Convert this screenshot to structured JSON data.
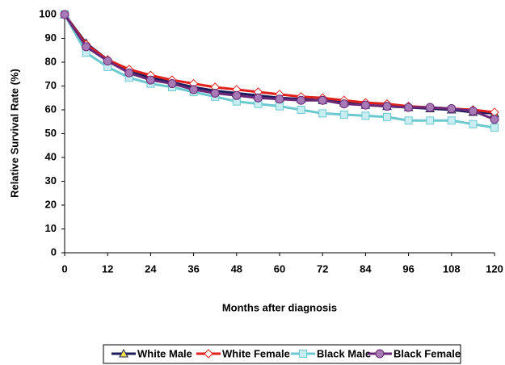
{
  "chart_data": {
    "type": "line",
    "x_label": "Months after diagnosis",
    "y_label": "Relative Survival Rate (%)",
    "x": [
      0,
      6,
      12,
      18,
      24,
      30,
      36,
      42,
      48,
      54,
      60,
      66,
      72,
      78,
      84,
      90,
      96,
      102,
      108,
      114,
      120
    ],
    "series": [
      {
        "name": "White Male",
        "color": "#1c1c5c",
        "marker": "triangle",
        "marker_fill": "#f2e14c",
        "values": [
          100,
          88,
          81,
          76.5,
          73.5,
          71.5,
          69.5,
          68,
          67,
          66,
          65,
          64.5,
          64,
          63,
          62,
          61.5,
          61,
          60.5,
          60,
          59,
          58.5
        ]
      },
      {
        "name": "White Female",
        "color": "#e0201b",
        "marker": "diamond",
        "marker_fill": "#ffffff",
        "values": [
          100,
          87.5,
          81,
          77,
          74.5,
          72.5,
          71,
          69.5,
          68.5,
          67.5,
          66.5,
          65.5,
          65,
          64,
          63,
          62.5,
          61.5,
          61,
          60.5,
          60,
          59
        ]
      },
      {
        "name": "Black Male",
        "color": "#6cc9d0",
        "marker": "square",
        "marker_fill": "#c8eef2",
        "values": [
          100,
          84,
          78,
          73.5,
          71,
          69.5,
          67.5,
          65.5,
          63.5,
          62.5,
          61.5,
          60,
          58.5,
          58,
          57.5,
          57,
          55.5,
          55.5,
          55.5,
          54,
          52.5
        ]
      },
      {
        "name": "Black Female",
        "color": "#6a2878",
        "marker": "circle",
        "marker_fill": "#a77ab5",
        "values": [
          100,
          86.5,
          80.5,
          75.5,
          72.5,
          71,
          68.5,
          67,
          66,
          65,
          64.5,
          64,
          64,
          62.5,
          62,
          61.5,
          61,
          61,
          60.5,
          59.5,
          56
        ]
      }
    ],
    "xlim": [
      0,
      120
    ],
    "xticks": [
      0,
      12,
      24,
      36,
      48,
      60,
      72,
      84,
      96,
      108,
      120
    ],
    "ylim": [
      0,
      100
    ],
    "yticks": [
      0,
      10,
      20,
      30,
      40,
      50,
      60,
      70,
      80,
      90,
      100
    ],
    "grid": false,
    "legend": "bottom"
  }
}
